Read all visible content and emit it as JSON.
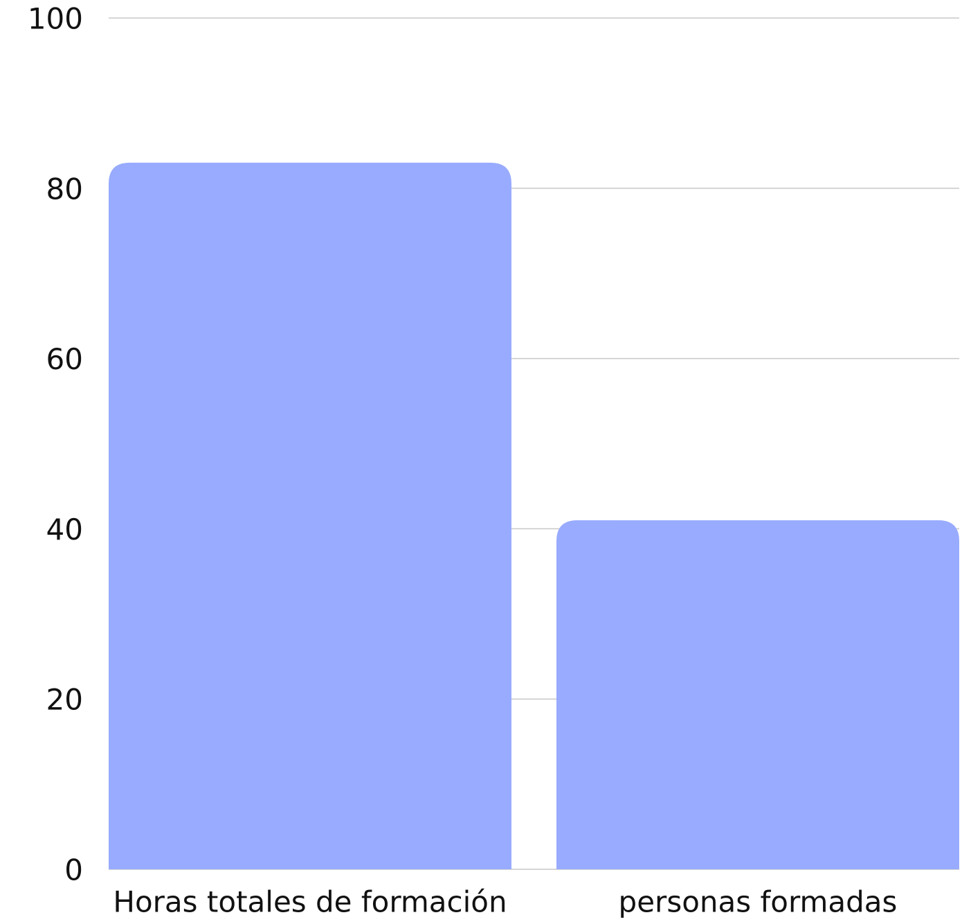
{
  "chart_data": {
    "type": "bar",
    "categories": [
      "Horas totales de formación",
      "personas formadas"
    ],
    "values": [
      83,
      41
    ],
    "color": "#98abfe",
    "ylim": [
      0,
      100
    ],
    "yticks": [
      0,
      20,
      40,
      60,
      80,
      100
    ],
    "grid": true
  }
}
